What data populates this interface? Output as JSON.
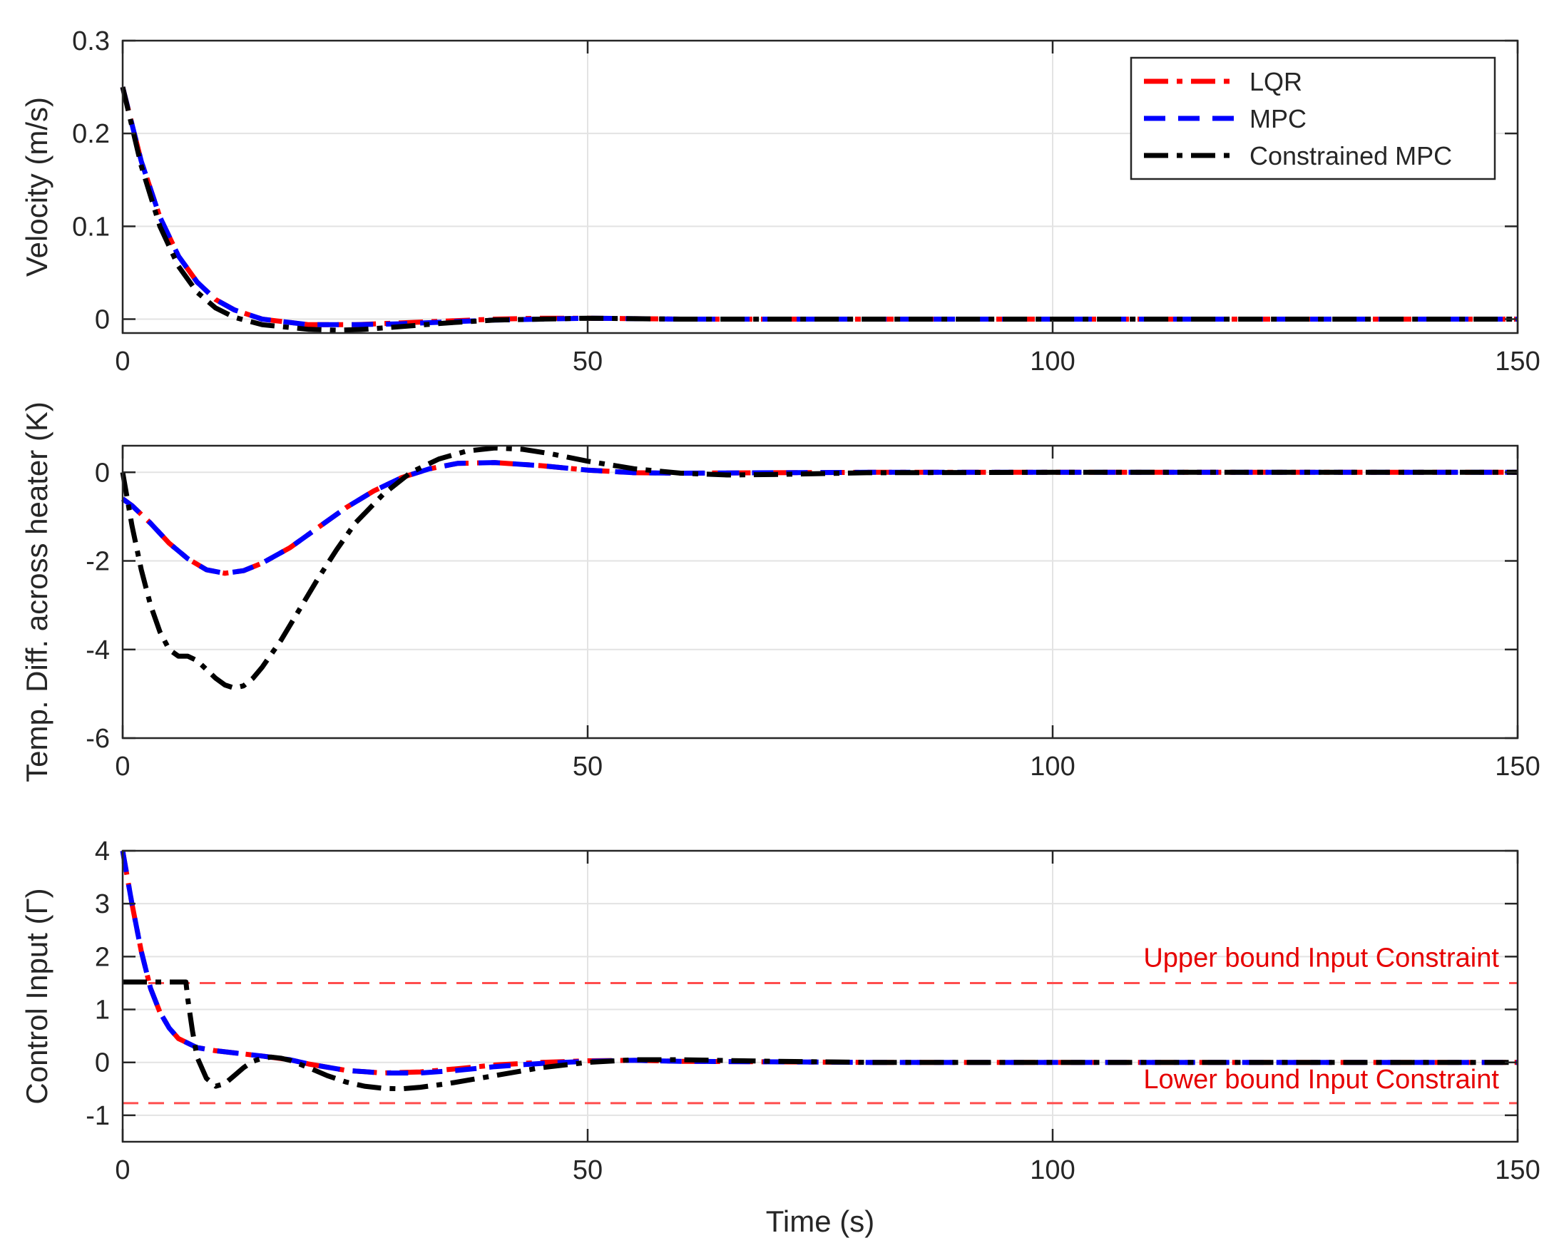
{
  "chart_data": [
    {
      "type": "line",
      "ylabel": "Velocity (m/s)",
      "xlabel": "",
      "xlim": [
        0,
        150
      ],
      "ylim": [
        -0.015,
        0.3
      ],
      "xticks": [
        0,
        50,
        100,
        150
      ],
      "xtick_labels": [
        "0",
        "50",
        "100",
        "150"
      ],
      "yticks": [
        0,
        0.1,
        0.2,
        0.3
      ],
      "ytick_labels": [
        "0",
        "0.1",
        "0.2",
        "0.3"
      ],
      "grid": true,
      "legend": {
        "placement": "top-right",
        "entries": [
          "LQR",
          "MPC",
          "Constrained MPC"
        ]
      },
      "series": [
        {
          "name": "LQR",
          "color": "#ff0000",
          "style": "dash-dot",
          "x": [
            0,
            2,
            4,
            6,
            8,
            10,
            12,
            15,
            20,
            25,
            30,
            35,
            40,
            45,
            50,
            60,
            80,
            100,
            150
          ],
          "y": [
            0.25,
            0.17,
            0.11,
            0.068,
            0.04,
            0.021,
            0.01,
            0.0,
            -0.006,
            -0.006,
            -0.004,
            -0.002,
            0.0,
            0.001,
            0.001,
            0.0,
            0.0,
            0.0,
            0.0
          ]
        },
        {
          "name": "MPC",
          "color": "#0000ff",
          "style": "dashed",
          "x": [
            0,
            2,
            4,
            6,
            8,
            10,
            12,
            15,
            20,
            25,
            30,
            35,
            40,
            45,
            50,
            60,
            80,
            100,
            150
          ],
          "y": [
            0.25,
            0.17,
            0.11,
            0.068,
            0.04,
            0.021,
            0.01,
            0.0,
            -0.006,
            -0.006,
            -0.005,
            -0.003,
            -0.001,
            0.0,
            0.001,
            0.0,
            0.0,
            0.0,
            0.0
          ]
        },
        {
          "name": "Constrained MPC",
          "color": "#000000",
          "style": "dash-dot",
          "x": [
            0,
            2,
            4,
            6,
            8,
            10,
            12,
            15,
            20,
            23,
            26,
            30,
            35,
            40,
            45,
            50,
            60,
            80,
            100,
            150
          ],
          "y": [
            0.25,
            0.165,
            0.1,
            0.057,
            0.029,
            0.012,
            0.002,
            -0.006,
            -0.011,
            -0.012,
            -0.011,
            -0.008,
            -0.004,
            -0.001,
            0.0,
            0.001,
            0.0,
            0.0,
            0.0,
            0.0
          ]
        }
      ]
    },
    {
      "type": "line",
      "ylabel": "Temp. Diff. across heater (K)",
      "xlabel": "",
      "xlim": [
        0,
        150
      ],
      "ylim": [
        -6,
        0.6
      ],
      "xticks": [
        0,
        50,
        100,
        150
      ],
      "xtick_labels": [
        "0",
        "50",
        "100",
        "150"
      ],
      "yticks": [
        -6,
        -4,
        -2,
        0
      ],
      "ytick_labels": [
        "-6",
        "-4",
        "-2",
        "0"
      ],
      "grid": true,
      "series": [
        {
          "name": "LQR",
          "color": "#ff0000",
          "style": "dash-dot",
          "x": [
            0,
            1,
            3,
            5,
            7,
            9,
            11,
            13,
            15,
            18,
            21,
            24,
            27,
            30,
            33,
            36,
            40,
            45,
            50,
            55,
            60,
            80,
            100,
            150
          ],
          "y": [
            -0.6,
            -0.75,
            -1.15,
            -1.6,
            -1.95,
            -2.2,
            -2.28,
            -2.22,
            -2.05,
            -1.7,
            -1.25,
            -0.8,
            -0.42,
            -0.12,
            0.08,
            0.2,
            0.22,
            0.15,
            0.05,
            -0.01,
            -0.02,
            0.0,
            0.0,
            0.0
          ]
        },
        {
          "name": "MPC",
          "color": "#0000ff",
          "style": "dashed",
          "x": [
            0,
            1,
            3,
            5,
            7,
            9,
            11,
            13,
            15,
            18,
            21,
            24,
            27,
            30,
            33,
            36,
            40,
            45,
            50,
            55,
            60,
            80,
            100,
            150
          ],
          "y": [
            -0.6,
            -0.75,
            -1.15,
            -1.6,
            -1.95,
            -2.2,
            -2.28,
            -2.22,
            -2.05,
            -1.7,
            -1.25,
            -0.8,
            -0.42,
            -0.12,
            0.08,
            0.2,
            0.22,
            0.15,
            0.05,
            -0.01,
            -0.02,
            0.0,
            0.0,
            0.0
          ]
        },
        {
          "name": "Constrained MPC",
          "color": "#000000",
          "style": "dash-dot",
          "x": [
            0,
            0.5,
            1,
            2,
            3,
            4,
            5,
            6,
            7,
            8,
            9,
            10,
            11,
            12,
            13,
            14,
            15,
            17,
            19,
            21,
            23,
            25,
            28,
            31,
            34,
            37,
            40,
            43,
            46,
            50,
            55,
            60,
            65,
            70,
            80,
            100,
            150
          ],
          "y": [
            0.0,
            -0.6,
            -1.2,
            -2.2,
            -3.0,
            -3.6,
            -4.0,
            -4.15,
            -4.15,
            -4.25,
            -4.45,
            -4.65,
            -4.8,
            -4.87,
            -4.82,
            -4.65,
            -4.4,
            -3.8,
            -3.1,
            -2.4,
            -1.75,
            -1.15,
            -0.5,
            0.0,
            0.3,
            0.48,
            0.55,
            0.52,
            0.42,
            0.25,
            0.08,
            -0.02,
            -0.06,
            -0.05,
            -0.01,
            0.0,
            0.0
          ]
        }
      ]
    },
    {
      "type": "line",
      "ylabel": "Control Input (Γ)",
      "xlabel": "Time (s)",
      "xlim": [
        0,
        150
      ],
      "ylim": [
        -1.5,
        4
      ],
      "xticks": [
        0,
        50,
        100,
        150
      ],
      "xtick_labels": [
        "0",
        "50",
        "100",
        "150"
      ],
      "yticks": [
        -1,
        0,
        1,
        2,
        3,
        4
      ],
      "ytick_labels": [
        "-1",
        "0",
        "1",
        "2",
        "3",
        "4"
      ],
      "grid": true,
      "annotations": [
        {
          "text": "Upper bound Input Constraint",
          "x": 148,
          "y": 2.0
        },
        {
          "text": "Lower bound Input Constraint",
          "x": 148,
          "y": -0.3
        }
      ],
      "reference_lines": [
        {
          "label": "Upper bound Input Constraint",
          "y": 1.5,
          "color": "#ff4d4d",
          "style": "dashed"
        },
        {
          "label": "Lower bound Input Constraint",
          "y": -0.77,
          "color": "#ff4d4d",
          "style": "dashed"
        }
      ],
      "series": [
        {
          "name": "LQR",
          "color": "#ff0000",
          "style": "dash-dot",
          "x": [
            0,
            1,
            2,
            3,
            4,
            5,
            6,
            8,
            10,
            12,
            15,
            18,
            20,
            24,
            28,
            32,
            36,
            40,
            45,
            50,
            55,
            60,
            80,
            100,
            150
          ],
          "y": [
            4.0,
            3.0,
            2.1,
            1.4,
            0.95,
            0.65,
            0.45,
            0.28,
            0.22,
            0.18,
            0.12,
            0.05,
            -0.03,
            -0.15,
            -0.2,
            -0.18,
            -0.12,
            -0.05,
            0.0,
            0.03,
            0.04,
            0.02,
            0.0,
            0.0,
            0.0
          ]
        },
        {
          "name": "MPC",
          "color": "#0000ff",
          "style": "dashed",
          "x": [
            0,
            1,
            2,
            3,
            4,
            5,
            6,
            8,
            10,
            12,
            15,
            18,
            20,
            24,
            28,
            32,
            36,
            40,
            45,
            50,
            55,
            60,
            80,
            100,
            150
          ],
          "y": [
            4.0,
            3.0,
            2.1,
            1.4,
            0.95,
            0.65,
            0.45,
            0.28,
            0.22,
            0.18,
            0.12,
            0.05,
            -0.03,
            -0.15,
            -0.2,
            -0.2,
            -0.15,
            -0.08,
            -0.02,
            0.02,
            0.04,
            0.02,
            0.0,
            0.0,
            0.0
          ]
        },
        {
          "name": "Constrained MPC",
          "color": "#000000",
          "style": "dash-dot",
          "x": [
            0,
            6.8,
            7.0,
            7.5,
            8,
            9,
            10,
            11,
            12,
            13,
            14,
            15,
            16,
            17,
            18,
            20,
            22,
            24,
            26,
            28,
            30,
            32,
            35,
            40,
            45,
            50,
            55,
            60,
            70,
            80,
            100,
            150
          ],
          "y": [
            1.52,
            1.52,
            1.2,
            0.6,
            0.1,
            -0.3,
            -0.45,
            -0.4,
            -0.25,
            -0.1,
            0.02,
            0.08,
            0.1,
            0.08,
            0.04,
            -0.1,
            -0.25,
            -0.37,
            -0.45,
            -0.49,
            -0.5,
            -0.47,
            -0.4,
            -0.25,
            -0.1,
            0.0,
            0.05,
            0.05,
            0.02,
            0.0,
            0.0,
            0.0
          ]
        }
      ]
    }
  ]
}
